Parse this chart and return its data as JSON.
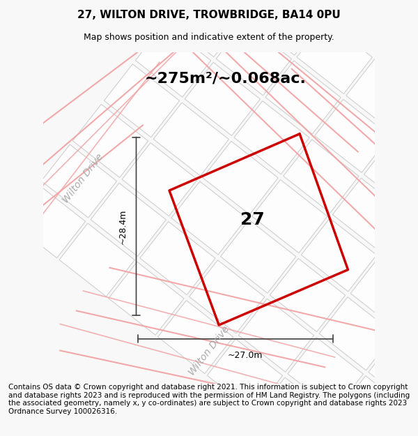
{
  "title_line1": "27, WILTON DRIVE, TROWBRIDGE, BA14 0PU",
  "title_line2": "Map shows position and indicative extent of the property.",
  "area_text": "~275m²/~0.068ac.",
  "plot_number": "27",
  "dim_height": "~28.4m",
  "dim_width": "~27.0m",
  "road_label1": "Wilton Drive",
  "road_label2": "Wilton Drive",
  "footer_text": "Contains OS data © Crown copyright and database right 2021. This information is subject to Crown copyright and database rights 2023 and is reproduced with the permission of HM Land Registry. The polygons (including the associated geometry, namely x, y co-ordinates) are subject to Crown copyright and database rights 2023 Ordnance Survey 100026316.",
  "bg_color": "#f0f0f0",
  "map_bg": "#e8e8e8",
  "grid_color": "#d8d8d8",
  "plot_color": "#cc0000",
  "plot_fill": "none",
  "road_line_color": "#f0a0a0",
  "dim_line_color": "#404040",
  "title_fontsize": 11,
  "subtitle_fontsize": 9,
  "area_fontsize": 16,
  "plot_num_fontsize": 18,
  "dim_fontsize": 9,
  "road_fontsize": 10,
  "footer_fontsize": 7.5
}
